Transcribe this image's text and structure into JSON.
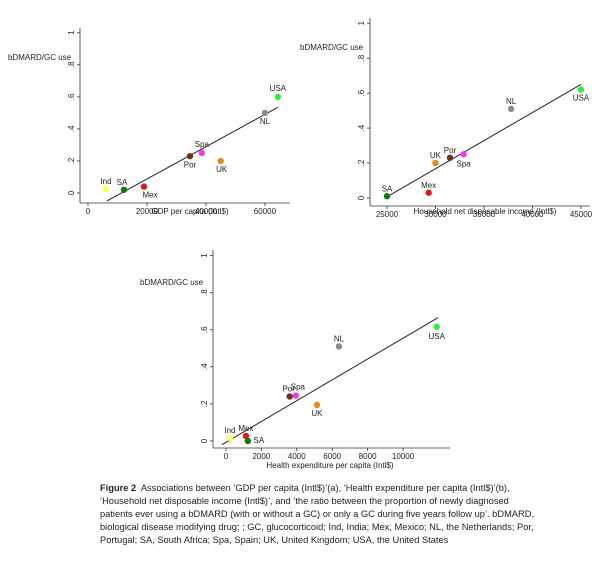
{
  "chart_data": [
    {
      "type": "scatter",
      "ylabel": "bDMARD/GC use",
      "xlabel": "GDP per capita (Intl$)",
      "labels": [
        "Ind",
        "SA",
        "Mex",
        "Por",
        "Spa",
        "UK",
        "NL",
        "USA"
      ],
      "x": [
        6100,
        12200,
        19000,
        34600,
        38600,
        45000,
        60000,
        64400
      ],
      "y": [
        0.025,
        0.02,
        0.04,
        0.23,
        0.25,
        0.2,
        0.5,
        0.6
      ],
      "colors": [
        "#ffff55",
        "#0b7a0b",
        "#e31a1a",
        "#6e3414",
        "#ee3cee",
        "#e8891c",
        "#8c8c8c",
        "#33ee33"
      ],
      "fit_x": [
        6400,
        64400
      ],
      "fit_y": [
        -0.05,
        0.535
      ],
      "xlim": [
        -2700,
        68500
      ],
      "ylim": [
        -0.0625,
        1.03
      ],
      "xticks": [
        0,
        20000,
        40000,
        60000
      ],
      "yticks": [
        0,
        {
          "value": 0.2,
          "label": ".2"
        },
        {
          "value": 0.4,
          "label": ".4"
        },
        {
          "value": 0.6,
          "label": ".6"
        },
        {
          "value": 0.8,
          "label": ".8"
        },
        1
      ]
    },
    {
      "type": "scatter",
      "ylabel": "bDMARD/GC use",
      "xlabel": "Household net disposable income (Intl$)",
      "labels": [
        "SA",
        "Mex",
        "UK",
        "Por",
        "Spa",
        "NL",
        "USA"
      ],
      "x": [
        25000,
        29300,
        30000,
        31500,
        32900,
        37800,
        45000
      ],
      "y": [
        0.01,
        0.03,
        0.2,
        0.23,
        0.25,
        0.51,
        0.62
      ],
      "colors": [
        "#0b7a0b",
        "#e31a1a",
        "#e8891c",
        "#6e3414",
        "#ee3cee",
        "#8c8c8c",
        "#33ee33"
      ],
      "fit_x": [
        24800,
        45000
      ],
      "fit_y": [
        0,
        0.65
      ],
      "xlim": [
        23250,
        45930
      ],
      "ylim": [
        -0.046,
        1.03
      ],
      "xticks": [
        25000,
        30000,
        35000,
        40000,
        45000
      ],
      "yticks": [
        0,
        {
          "value": 0.2,
          "label": ".2"
        },
        {
          "value": 0.4,
          "label": ".4"
        },
        {
          "value": 0.6,
          "label": ".6"
        },
        {
          "value": 0.8,
          "label": ".8"
        },
        1
      ]
    },
    {
      "type": "scatter",
      "ylabel": "bDMARD/GC use",
      "xlabel": "Health expenditure per capita (Intl$)",
      "labels": [
        "Ind",
        "Mex",
        "SA",
        "Por",
        "Spa",
        "UK",
        "NL",
        "USA"
      ],
      "x": [
        225,
        1130,
        1240,
        3600,
        3950,
        5140,
        6380,
        11900
      ],
      "y": [
        0.016,
        0.027,
        0,
        0.24,
        0.245,
        0.195,
        0.51,
        0.616
      ],
      "colors": [
        "#ffff55",
        "#e31a1a",
        "#0b7a0b",
        "#6e3414",
        "#ee3cee",
        "#e8891c",
        "#8c8c8c",
        "#33ee33"
      ],
      "fit_x": [
        -225,
        11970
      ],
      "fit_y": [
        -0.02,
        0.665
      ],
      "xlim": [
        -730,
        12650
      ],
      "ylim": [
        -0.038,
        1.03
      ],
      "xticks": [
        0,
        2000,
        4000,
        6000,
        8000,
        10000
      ],
      "yticks": [
        0,
        {
          "value": 0.2,
          "label": ".2"
        },
        {
          "value": 0.4,
          "label": ".4"
        },
        {
          "value": 0.6,
          "label": ".6"
        },
        {
          "value": 0.8,
          "label": ".8"
        },
        1
      ]
    }
  ],
  "caption": {
    "label": "Figure 2",
    "text": "Associations between ‘GDP per capita (Intl$)’(a), ‘Health expenditure per capita (Intl$)’(b), ‘Household net disposable income (Intl$)’, and ‘the ratio between the proportion of newly diagnosed patients ever using a bDMARD (with or without a GC) or only a GC during five years follow up’. bDMARD, biological disease modifying drug; ; GC, glucocorticoid; Ind, India; Mex, Mexico; NL, the Netherlands; Por, Portugal; SA, South Africa; Spa, Spain; UK, United Kingdom; USA, the United States"
  }
}
